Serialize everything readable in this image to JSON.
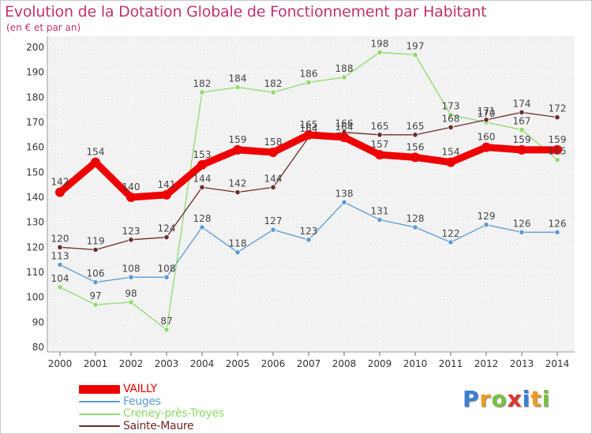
{
  "chart_data": {
    "type": "line",
    "title": "Evolution de la Dotation Globale de Fonctionnement par Habitant",
    "subtitle": "(en € et par an)",
    "x": [
      "2000",
      "2001",
      "2002",
      "2003",
      "2004",
      "2005",
      "2006",
      "2007",
      "2008",
      "2009",
      "2010",
      "2011",
      "2012",
      "2013",
      "2014"
    ],
    "ylim": [
      80,
      200
    ],
    "yticks": [
      80,
      90,
      100,
      110,
      120,
      130,
      140,
      150,
      160,
      170,
      180,
      190,
      200
    ],
    "grid": true,
    "legend_position": "bottom-left",
    "series": [
      {
        "name": "VAILLY",
        "color": "#ee0000",
        "values": [
          142,
          154,
          140,
          141,
          153,
          159,
          158,
          165,
          164,
          157,
          156,
          154,
          160,
          159,
          159
        ]
      },
      {
        "name": "Feuges",
        "color": "#5b9bd5",
        "values": [
          113,
          106,
          108,
          108,
          128,
          118,
          127,
          123,
          138,
          131,
          128,
          122,
          129,
          126,
          126
        ]
      },
      {
        "name": "Creney-près-Troyes",
        "color": "#8fd96b",
        "values": [
          104,
          97,
          98,
          87,
          182,
          184,
          182,
          186,
          188,
          198,
          197,
          173,
          170,
          167,
          155
        ]
      },
      {
        "name": "Sainte-Maure",
        "color": "#6e2a2a",
        "values": [
          120,
          119,
          123,
          124,
          144,
          142,
          144,
          164,
          166,
          165,
          165,
          168,
          171,
          174,
          172
        ]
      }
    ]
  },
  "logo": {
    "letters": [
      "P",
      "r",
      "o",
      "x",
      "i",
      "t",
      "i"
    ],
    "colors": [
      "#3b7fd4",
      "#f09a1e",
      "#7ac143",
      "#e0332d",
      "#3b7fd4",
      "#f09a1e",
      "#7ac143"
    ]
  }
}
